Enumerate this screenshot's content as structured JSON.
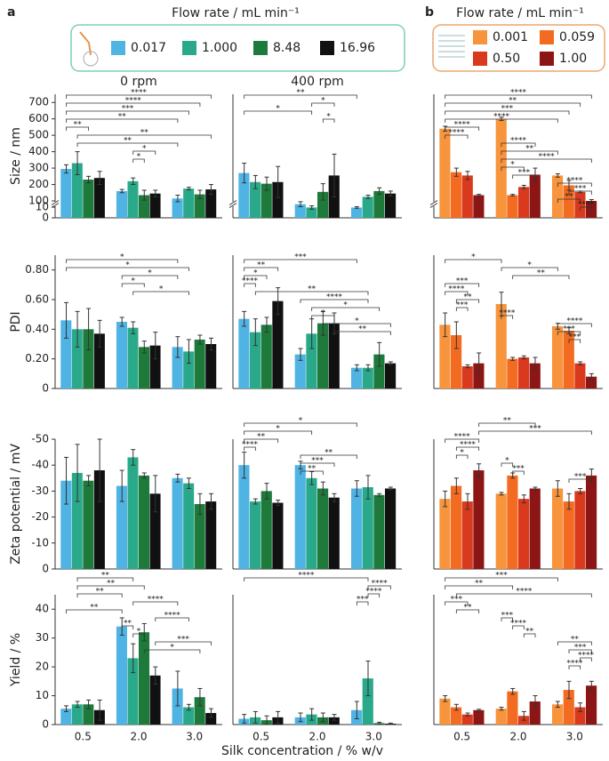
{
  "figure": {
    "panel_labels": [
      "a",
      "b"
    ],
    "legend_titles": [
      "Flow rate / mL min⁻¹",
      "Flow rate / mL min⁻¹"
    ],
    "xlabel": "Silk concentration / % w/v"
  },
  "chart_data": [
    {
      "type": "bar",
      "title": "0 rpm",
      "ylabel": "Size / nm",
      "categories": [
        null,
        null,
        null
      ],
      "ylim": [
        0,
        750
      ],
      "ybreak": [
        10,
        100
      ],
      "yticks": [
        0,
        10,
        100,
        200,
        300,
        400,
        500,
        600,
        700
      ],
      "series": [
        {
          "name": "0.017",
          "color": "#4fb3e3",
          "values": [
            295,
            160,
            115
          ],
          "errors": [
            25,
            10,
            20
          ]
        },
        {
          "name": "1.000",
          "color": "#2aa98a",
          "values": [
            330,
            220,
            175
          ],
          "errors": [
            70,
            20,
            8
          ]
        },
        {
          "name": "8.48",
          "color": "#1d7a3b",
          "values": [
            230,
            135,
            140
          ],
          "errors": [
            20,
            30,
            25
          ]
        },
        {
          "name": "16.96",
          "color": "#111111",
          "values": [
            240,
            145,
            170
          ],
          "errors": [
            40,
            20,
            30
          ]
        }
      ],
      "significance": [
        "****",
        "****",
        "***",
        "**",
        "**",
        "**",
        "**",
        "*",
        "*"
      ]
    },
    {
      "type": "bar",
      "title": "400 rpm",
      "categories": [
        null,
        null,
        null
      ],
      "ylim": [
        0,
        750
      ],
      "ybreak": [
        10,
        100
      ],
      "series": [
        {
          "name": "0.017",
          "color": "#4fb3e3",
          "values": [
            270,
            80,
            60
          ],
          "errors": [
            60,
            15,
            5
          ]
        },
        {
          "name": "1.000",
          "color": "#2aa98a",
          "values": [
            215,
            60,
            125
          ],
          "errors": [
            40,
            10,
            10
          ]
        },
        {
          "name": "8.48",
          "color": "#1d7a3b",
          "values": [
            205,
            155,
            160
          ],
          "errors": [
            40,
            50,
            20
          ]
        },
        {
          "name": "16.96",
          "color": "#111111",
          "values": [
            215,
            255,
            145
          ],
          "errors": [
            95,
            130,
            15
          ]
        }
      ],
      "significance": [
        "**",
        "*",
        "*",
        "*"
      ]
    },
    {
      "type": "bar",
      "categories": [
        null,
        null,
        null
      ],
      "ylim": [
        0,
        750
      ],
      "ybreak": [
        10,
        100
      ],
      "series": [
        {
          "name": "0.001",
          "color": "#f7943c",
          "values": [
            540,
            600,
            255
          ],
          "errors": [
            15,
            10,
            10
          ]
        },
        {
          "name": "0.059",
          "color": "#f26b21",
          "values": [
            275,
            135,
            195
          ],
          "errors": [
            25,
            5,
            30
          ]
        },
        {
          "name": "0.50",
          "color": "#d9391c",
          "values": [
            255,
            185,
            155
          ],
          "errors": [
            25,
            10,
            5
          ]
        },
        {
          "name": "1.00",
          "color": "#8c1515",
          "values": [
            135,
            260,
            100
          ],
          "errors": [
            5,
            40,
            8
          ]
        }
      ],
      "significance": [
        "****",
        "**",
        "***",
        "****",
        "****",
        "****",
        "****",
        "**",
        "****",
        "*",
        "***",
        "****",
        "***",
        "**",
        "****"
      ]
    },
    {
      "type": "bar",
      "ylabel": "PDI",
      "categories": [
        null,
        null,
        null
      ],
      "ylim": [
        0,
        0.9
      ],
      "yticks": [
        0,
        {
          "value": 0.2,
          "label": "0.20"
        },
        {
          "value": 0.4,
          "label": "0.40"
        },
        {
          "value": 0.6,
          "label": "0.60"
        },
        {
          "value": 0.8,
          "label": "0.80"
        }
      ],
      "series": [
        {
          "name": "0.017",
          "color": "#4fb3e3",
          "values": [
            0.46,
            0.45,
            0.28
          ],
          "errors": [
            0.12,
            0.03,
            0.07
          ]
        },
        {
          "name": "1.000",
          "color": "#2aa98a",
          "values": [
            0.4,
            0.41,
            0.25
          ],
          "errors": [
            0.12,
            0.04,
            0.08
          ]
        },
        {
          "name": "8.48",
          "color": "#1d7a3b",
          "values": [
            0.4,
            0.28,
            0.33
          ],
          "errors": [
            0.14,
            0.04,
            0.03
          ]
        },
        {
          "name": "16.96",
          "color": "#111111",
          "values": [
            0.37,
            0.29,
            0.3
          ],
          "errors": [
            0.09,
            0.09,
            0.04
          ]
        }
      ],
      "significance": [
        "*",
        "*",
        "*",
        "*",
        "*"
      ]
    },
    {
      "type": "bar",
      "categories": [
        null,
        null,
        null
      ],
      "ylim": [
        0,
        0.9
      ],
      "series": [
        {
          "name": "0.017",
          "color": "#4fb3e3",
          "values": [
            0.47,
            0.23,
            0.14
          ],
          "errors": [
            0.05,
            0.04,
            0.02
          ]
        },
        {
          "name": "1.000",
          "color": "#2aa98a",
          "values": [
            0.38,
            0.37,
            0.14
          ],
          "errors": [
            0.09,
            0.1,
            0.02
          ]
        },
        {
          "name": "8.48",
          "color": "#1d7a3b",
          "values": [
            0.43,
            0.44,
            0.23
          ],
          "errors": [
            0.05,
            0.08,
            0.08
          ]
        },
        {
          "name": "16.96",
          "color": "#111111",
          "values": [
            0.59,
            0.44,
            0.17
          ],
          "errors": [
            0.09,
            0.07,
            0.01
          ]
        }
      ],
      "significance": [
        "***",
        "**",
        "*",
        "****",
        "**",
        "****",
        "*",
        "*",
        "*",
        "**"
      ]
    },
    {
      "type": "bar",
      "categories": [
        null,
        null,
        null
      ],
      "ylim": [
        0,
        0.9
      ],
      "series": [
        {
          "name": "0.001",
          "color": "#f7943c",
          "values": [
            0.43,
            0.57,
            0.42
          ],
          "errors": [
            0.08,
            0.08,
            0.02
          ]
        },
        {
          "name": "0.059",
          "color": "#f26b21",
          "values": [
            0.36,
            0.2,
            0.39
          ],
          "errors": [
            0.09,
            0.01,
            0.02
          ]
        },
        {
          "name": "0.50",
          "color": "#d9391c",
          "values": [
            0.15,
            0.21,
            0.17
          ],
          "errors": [
            0.01,
            0.01,
            0.01
          ]
        },
        {
          "name": "1.00",
          "color": "#8c1515",
          "values": [
            0.17,
            0.17,
            0.08
          ],
          "errors": [
            0.07,
            0.04,
            0.02
          ]
        }
      ],
      "significance": [
        "*",
        "*",
        "**",
        "***",
        "****",
        "**",
        "***",
        "****",
        "****",
        "***",
        "***"
      ]
    },
    {
      "type": "bar",
      "ylabel": "Zeta potential / mV",
      "categories": [
        null,
        null,
        null
      ],
      "ylim": [
        0,
        -50
      ],
      "yticks": [
        0,
        -10,
        -20,
        -30,
        -40,
        -50
      ],
      "series": [
        {
          "name": "0.017",
          "color": "#4fb3e3",
          "values": [
            -34,
            -32,
            -35
          ],
          "errors": [
            9,
            6,
            1.5
          ]
        },
        {
          "name": "1.000",
          "color": "#2aa98a",
          "values": [
            -37,
            -43,
            -33
          ],
          "errors": [
            11,
            3,
            2
          ]
        },
        {
          "name": "8.48",
          "color": "#1d7a3b",
          "values": [
            -34,
            -36,
            -25
          ],
          "errors": [
            2,
            1,
            4
          ]
        },
        {
          "name": "16.96",
          "color": "#111111",
          "values": [
            -38,
            -29,
            -26
          ],
          "errors": [
            12,
            7,
            3
          ]
        }
      ],
      "significance": []
    },
    {
      "type": "bar",
      "categories": [
        null,
        null,
        null
      ],
      "ylim": [
        0,
        -50
      ],
      "series": [
        {
          "name": "0.017",
          "color": "#4fb3e3",
          "values": [
            -40,
            -40,
            -31
          ],
          "errors": [
            5,
            1.5,
            3
          ]
        },
        {
          "name": "1.000",
          "color": "#2aa98a",
          "values": [
            -26,
            -35,
            -31.5
          ],
          "errors": [
            1,
            2.5,
            4.5
          ]
        },
        {
          "name": "8.48",
          "color": "#1d7a3b",
          "values": [
            -30,
            -31,
            -28.5
          ],
          "errors": [
            3,
            2.5,
            0.5
          ]
        },
        {
          "name": "16.96",
          "color": "#111111",
          "values": [
            -25.5,
            -27.5,
            -31
          ],
          "errors": [
            1,
            1.5,
            0.5
          ]
        }
      ],
      "significance": [
        "*",
        "*",
        "**",
        "****",
        "**",
        "***",
        "**"
      ]
    },
    {
      "type": "bar",
      "categories": [
        null,
        null,
        null
      ],
      "ylim": [
        0,
        -50
      ],
      "series": [
        {
          "name": "0.001",
          "color": "#f7943c",
          "values": [
            -27,
            -29,
            -31
          ],
          "errors": [
            3,
            0.5,
            3
          ]
        },
        {
          "name": "0.059",
          "color": "#f26b21",
          "values": [
            -32,
            -36,
            -26
          ],
          "errors": [
            3,
            1,
            3
          ]
        },
        {
          "name": "0.50",
          "color": "#d9391c",
          "values": [
            -26,
            -27,
            -30
          ],
          "errors": [
            3,
            1.5,
            1
          ]
        },
        {
          "name": "1.00",
          "color": "#8c1515",
          "values": [
            -38,
            -31,
            -36
          ],
          "errors": [
            2.5,
            0.5,
            2.5
          ]
        }
      ],
      "significance": [
        "**",
        "***",
        "****",
        "****",
        "*",
        "*",
        "***",
        "***"
      ]
    },
    {
      "type": "bar",
      "ylabel": "Yield / %",
      "categories": [
        "0.5",
        "2.0",
        "3.0"
      ],
      "ylim": [
        0,
        45
      ],
      "yticks": [
        0,
        10,
        20,
        30,
        40
      ],
      "series": [
        {
          "name": "0.017",
          "color": "#4fb3e3",
          "values": [
            5.5,
            34,
            12.5
          ],
          "errors": [
            1,
            3,
            6
          ]
        },
        {
          "name": "1.000",
          "color": "#2aa98a",
          "values": [
            7,
            23,
            6
          ],
          "errors": [
            1,
            5,
            1
          ]
        },
        {
          "name": "8.48",
          "color": "#1d7a3b",
          "values": [
            7,
            32,
            9.5
          ],
          "errors": [
            1.5,
            3,
            3
          ]
        },
        {
          "name": "16.96",
          "color": "#111111",
          "values": [
            5,
            17,
            4
          ],
          "errors": [
            3.5,
            3,
            1.5
          ]
        }
      ],
      "significance": [
        "**",
        "**",
        "**",
        "****",
        "**",
        "****",
        "**",
        "*",
        "***",
        "*"
      ]
    },
    {
      "type": "bar",
      "categories": [
        "0.5",
        "2.0",
        "3.0"
      ],
      "ylim": [
        0,
        45
      ],
      "series": [
        {
          "name": "0.017",
          "color": "#4fb3e3",
          "values": [
            2,
            2.5,
            5
          ],
          "errors": [
            1.5,
            1.5,
            3
          ]
        },
        {
          "name": "1.000",
          "color": "#2aa98a",
          "values": [
            2.5,
            3.5,
            16
          ],
          "errors": [
            2,
            2,
            6
          ]
        },
        {
          "name": "8.48",
          "color": "#1d7a3b",
          "values": [
            1.5,
            2.5,
            0.5
          ],
          "errors": [
            1.5,
            1.5,
            0.3
          ]
        },
        {
          "name": "16.96",
          "color": "#111111",
          "values": [
            2.5,
            2.5,
            0.3
          ],
          "errors": [
            2,
            1,
            0.2
          ]
        }
      ],
      "significance": [
        "****",
        "****",
        "****",
        "***"
      ]
    },
    {
      "type": "bar",
      "categories": [
        "0.5",
        "2.0",
        "3.0"
      ],
      "ylim": [
        0,
        45
      ],
      "series": [
        {
          "name": "0.001",
          "color": "#f7943c",
          "values": [
            9,
            5.5,
            7
          ],
          "errors": [
            1,
            0.5,
            1
          ]
        },
        {
          "name": "0.059",
          "color": "#f26b21",
          "values": [
            6,
            11.5,
            12
          ],
          "errors": [
            1,
            1,
            3
          ]
        },
        {
          "name": "0.50",
          "color": "#d9391c",
          "values": [
            3.5,
            3,
            6
          ],
          "errors": [
            0.5,
            1.5,
            1.5
          ]
        },
        {
          "name": "1.00",
          "color": "#8c1515",
          "values": [
            5,
            8,
            13.5
          ],
          "errors": [
            0.3,
            2,
            1.5
          ]
        }
      ],
      "significance": [
        "***",
        "**",
        "****",
        "***",
        "**",
        "***",
        "****",
        "**",
        "**",
        "***",
        "****",
        "****"
      ]
    }
  ]
}
